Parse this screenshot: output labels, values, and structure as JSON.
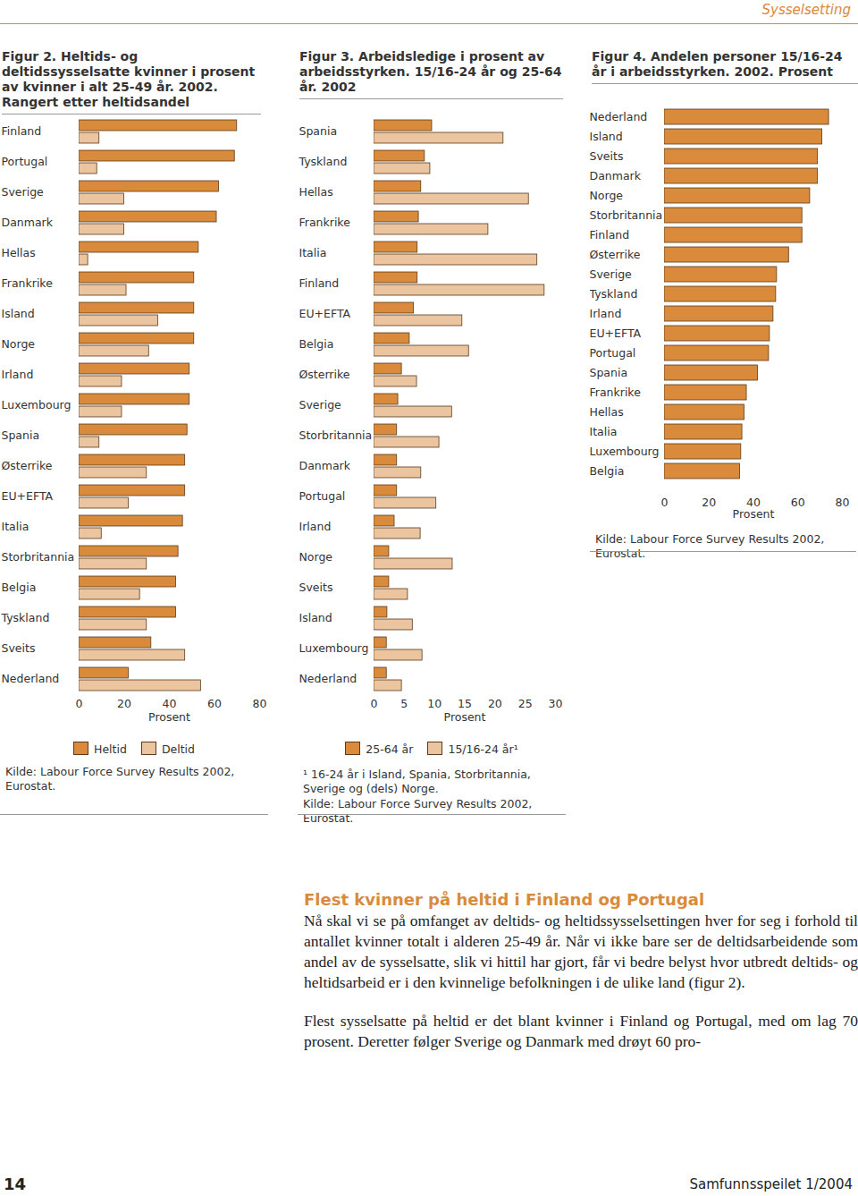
{
  "chart_data": [
    {
      "type": "bar",
      "title": "Figur 2. Heltids- og deltidssysselsatte kvinner i prosent av kvinner i alt 25-49 år. 2002. Rangert etter heltidsandel",
      "orientation": "horizontal",
      "categories": [
        "Finland",
        "Portugal",
        "Sverige",
        "Danmark",
        "Hellas",
        "Frankrike",
        "Island",
        "Norge",
        "Irland",
        "Luxembourg",
        "Spania",
        "Østerrike",
        "EU+EFTA",
        "Italia",
        "Storbritannia",
        "Belgia",
        "Tyskland",
        "Sveits",
        "Nederland"
      ],
      "series": [
        {
          "name": "Heltid",
          "color": "#d98a3a",
          "values": [
            70,
            69,
            62,
            61,
            53,
            51,
            51,
            51,
            49,
            49,
            48,
            47,
            47,
            46,
            44,
            43,
            43,
            32,
            22
          ]
        },
        {
          "name": "Deltid",
          "color": "#ebc4a0",
          "values": [
            9,
            8,
            20,
            20,
            4,
            21,
            35,
            31,
            19,
            19,
            9,
            30,
            22,
            10,
            30,
            27,
            30,
            47,
            54
          ]
        }
      ],
      "xlabel": "Prosent",
      "xlim": [
        0,
        80
      ],
      "xticks": [
        0,
        20,
        40,
        60,
        80
      ],
      "legend": "bottom",
      "source": "Kilde: Labour Force Survey Results 2002, Eurostat."
    },
    {
      "type": "bar",
      "title": "Figur 3. Arbeidsledige i prosent av arbeidsstyrken. 15/16-24 år og 25-64 år. 2002",
      "orientation": "horizontal",
      "categories": [
        "Spania",
        "Tyskland",
        "Hellas",
        "Frankrike",
        "Italia",
        "Finland",
        "EU+EFTA",
        "Belgia",
        "Østerrike",
        "Sverige",
        "Storbritannia",
        "Danmark",
        "Portugal",
        "Irland",
        "Norge",
        "Sveits",
        "Island",
        "Luxembourg",
        "Nederland"
      ],
      "series": [
        {
          "name": "25-64 år",
          "color": "#d98a3a",
          "values": [
            9.6,
            8.4,
            7.8,
            7.4,
            7.2,
            7.2,
            6.6,
            5.9,
            4.6,
            4.0,
            3.8,
            3.8,
            3.8,
            3.4,
            2.5,
            2.5,
            2.2,
            2.1,
            2.1
          ]
        },
        {
          "name": "15/16-24 år¹",
          "color": "#ebc4a0",
          "values": [
            21.4,
            9.3,
            25.6,
            18.9,
            27.0,
            28.2,
            14.6,
            15.7,
            7.1,
            12.9,
            10.8,
            7.8,
            10.3,
            7.7,
            13.0,
            5.6,
            6.4,
            8.0,
            4.6
          ]
        }
      ],
      "xlabel": "Prosent",
      "xlim": [
        0,
        30
      ],
      "xticks": [
        0,
        5,
        10,
        15,
        20,
        25,
        30
      ],
      "legend": "bottom",
      "footnote": "¹ 16-24 år i Island, Spania, Storbritannia, Sverige og (dels) Norge.",
      "source": "Kilde: Labour Force Survey Results 2002, Eurostat."
    },
    {
      "type": "bar",
      "title": "Figur 4. Andelen personer 15/16-24 år i arbeidsstyrken. 2002. Prosent",
      "orientation": "horizontal",
      "categories": [
        "Nederland",
        "Island",
        "Sveits",
        "Danmark",
        "Norge",
        "Storbritannia",
        "Finland",
        "Østerrike",
        "Sverige",
        "Tyskland",
        "Irland",
        "EU+EFTA",
        "Portugal",
        "Spania",
        "Frankrike",
        "Hellas",
        "Italia",
        "Luxembourg",
        "Belgia"
      ],
      "values": [
        74,
        71,
        69,
        69,
        65.5,
        62,
        62,
        56,
        50.6,
        50.2,
        49,
        47.4,
        47,
        42,
        37,
        36,
        35,
        34.5,
        34
      ],
      "color": "#d98a3a",
      "xlabel": "Prosent",
      "xlim": [
        0,
        80
      ],
      "xticks": [
        0,
        20,
        40,
        60,
        80
      ],
      "source": "Kilde: Labour Force Survey Results 2002, Eurostat."
    }
  ],
  "page": {
    "header": "Sysselsetting",
    "heading": "Flest kvinner på heltid i Finland og Portugal",
    "paragraphs": [
      "Nå skal vi se på omfanget av deltids- og heltidssysselsettingen hver for seg i forhold til antallet kvinner totalt i alderen 25-49 år. Når vi ikke bare ser de deltidsarbeidende som andel av de sysselsatte, slik vi hittil har gjort, får vi bedre belyst hvor utbredt deltids- og heltidsarbeid er i den kvinnelige befolkningen i de ulike land (figur 2).",
      "Flest sysselsatte på heltid er det blant kvinner i Finland og Portugal, med om lag 70 prosent. Deretter følger Sverige og Danmark med drøyt 60 pro-"
    ],
    "page_number": "14",
    "publication": "Samfunnsspeilet 1/2004"
  }
}
